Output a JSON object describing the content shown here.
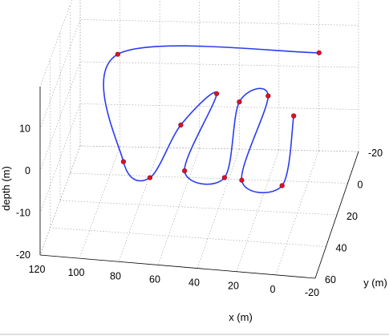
{
  "chart_data": {
    "type": "line",
    "subtype": "3d-trajectory",
    "title": "",
    "xlabel": "x (m)",
    "ylabel": "y (m)",
    "zlabel": "depth (m)",
    "xlim": [
      -20,
      120
    ],
    "ylim": [
      -20,
      60
    ],
    "zlim": [
      -20,
      10
    ],
    "x_ticks": [
      "120",
      "100",
      "80",
      "60",
      "40",
      "20",
      "0",
      "-20"
    ],
    "y_ticks": [
      "-20",
      "0",
      "20",
      "40",
      "60"
    ],
    "z_ticks": [
      "10",
      "0",
      "-10",
      "-20"
    ],
    "grid": true,
    "series": [
      {
        "color": "#2a3df0",
        "marker_color": "#e0102c",
        "waypoints": [
          {
            "x": -5,
            "y": -2,
            "z": 10
          },
          {
            "x": 95,
            "y": 4,
            "z": 10
          },
          {
            "x": 88,
            "y": 20,
            "z": -10
          },
          {
            "x": 72,
            "y": 30,
            "z": -10
          },
          {
            "x": 60,
            "y": 16,
            "z": -2
          },
          {
            "x": 44,
            "y": 8,
            "z": 3
          },
          {
            "x": 56,
            "y": 24,
            "z": -10
          },
          {
            "x": 35,
            "y": 27,
            "z": -10
          },
          {
            "x": 32,
            "y": 10,
            "z": 2
          },
          {
            "x": 18,
            "y": 8,
            "z": 3
          },
          {
            "x": 26,
            "y": 28,
            "z": -10
          },
          {
            "x": 5,
            "y": 30,
            "z": -10
          },
          {
            "x": 4,
            "y": 12,
            "z": 0
          }
        ]
      }
    ]
  }
}
